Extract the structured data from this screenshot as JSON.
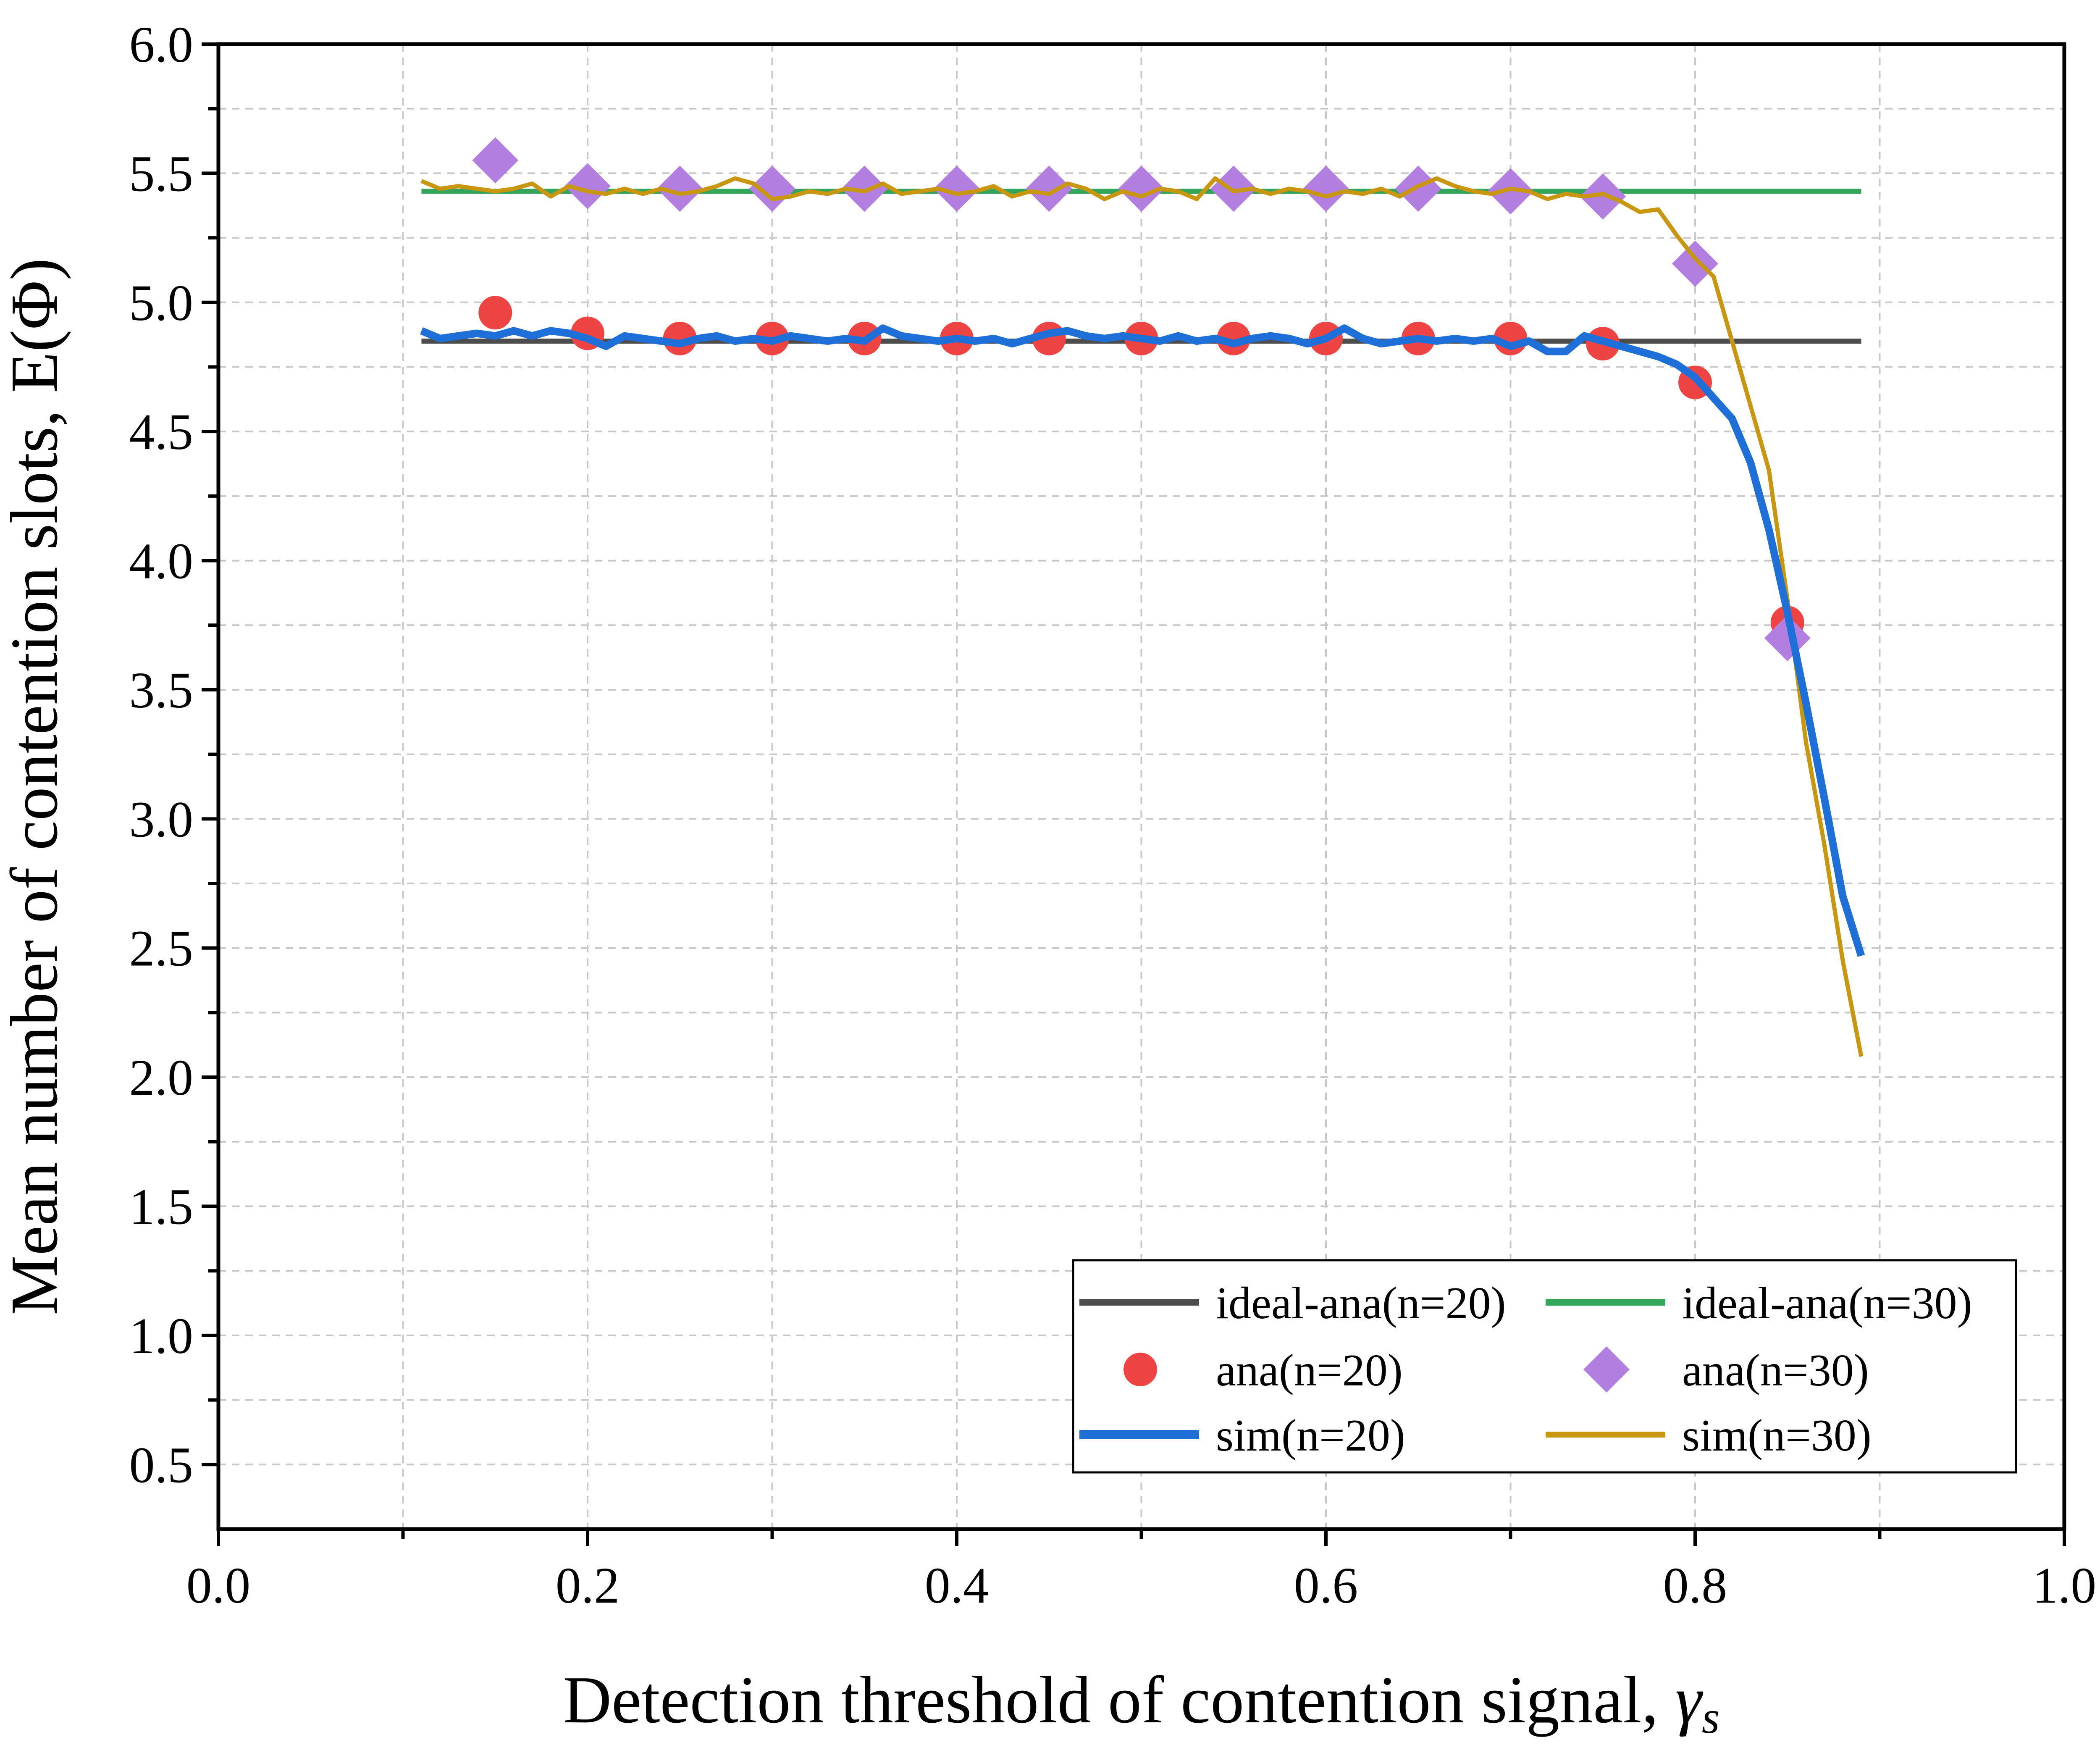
{
  "chart_data": {
    "type": "line",
    "xlabel": "Detection threshold of contention signal, ",
    "xlabel_symbol": "γ",
    "xlabel_subscript": "s",
    "ylabel": "Mean number of contention slots, E(Φ)",
    "xlim": [
      0.0,
      1.0
    ],
    "ylim": [
      0.25,
      6.0
    ],
    "x_ticks": [
      0.0,
      0.2,
      0.4,
      0.6,
      0.8,
      1.0
    ],
    "x_tick_labels": [
      "0.0",
      "0.2",
      "0.4",
      "0.6",
      "0.8",
      "1.0"
    ],
    "y_ticks": [
      0.5,
      1.0,
      1.5,
      2.0,
      2.5,
      3.0,
      3.5,
      4.0,
      4.5,
      5.0,
      5.5,
      6.0
    ],
    "y_tick_labels": [
      "0.5",
      "1.0",
      "1.5",
      "2.0",
      "2.5",
      "3.0",
      "3.5",
      "4.0",
      "4.5",
      "5.0",
      "5.5",
      "6.0"
    ],
    "grid": true,
    "legend_position": "bottom-right",
    "series": [
      {
        "name": "ideal-ana(n=20)",
        "kind": "line",
        "color": "#4d4d4d",
        "x": [
          0.11,
          0.89
        ],
        "y": [
          4.85,
          4.85
        ]
      },
      {
        "name": "ideal-ana(n=30)",
        "kind": "line",
        "color": "#33a65c",
        "x": [
          0.11,
          0.89
        ],
        "y": [
          5.43,
          5.43
        ]
      },
      {
        "name": "ana(n=20)",
        "kind": "marker-circle",
        "color": "#f04444",
        "x": [
          0.15,
          0.2,
          0.25,
          0.3,
          0.35,
          0.4,
          0.45,
          0.5,
          0.55,
          0.6,
          0.65,
          0.7,
          0.75,
          0.8,
          0.85
        ],
        "y": [
          4.96,
          4.88,
          4.86,
          4.86,
          4.86,
          4.86,
          4.86,
          4.86,
          4.86,
          4.86,
          4.86,
          4.86,
          4.84,
          4.69,
          3.76
        ]
      },
      {
        "name": "ana(n=30)",
        "kind": "marker-diamond",
        "color": "#b27fe0",
        "x": [
          0.15,
          0.2,
          0.25,
          0.3,
          0.35,
          0.4,
          0.45,
          0.5,
          0.55,
          0.6,
          0.65,
          0.7,
          0.75,
          0.8,
          0.85
        ],
        "y": [
          5.55,
          5.45,
          5.44,
          5.44,
          5.44,
          5.44,
          5.44,
          5.44,
          5.44,
          5.44,
          5.44,
          5.43,
          5.41,
          5.15,
          3.7
        ]
      },
      {
        "name": "sim(n=20)",
        "kind": "line",
        "color": "#1f6fd8",
        "x": [
          0.11,
          0.12,
          0.13,
          0.14,
          0.15,
          0.16,
          0.17,
          0.18,
          0.19,
          0.2,
          0.21,
          0.22,
          0.23,
          0.24,
          0.25,
          0.26,
          0.27,
          0.28,
          0.29,
          0.3,
          0.31,
          0.32,
          0.33,
          0.34,
          0.35,
          0.36,
          0.37,
          0.38,
          0.39,
          0.4,
          0.41,
          0.42,
          0.43,
          0.44,
          0.45,
          0.46,
          0.47,
          0.48,
          0.49,
          0.5,
          0.51,
          0.52,
          0.53,
          0.54,
          0.55,
          0.56,
          0.57,
          0.58,
          0.59,
          0.6,
          0.61,
          0.62,
          0.63,
          0.64,
          0.65,
          0.66,
          0.67,
          0.68,
          0.69,
          0.7,
          0.71,
          0.72,
          0.73,
          0.74,
          0.75,
          0.76,
          0.77,
          0.78,
          0.79,
          0.8,
          0.81,
          0.82,
          0.83,
          0.84,
          0.85,
          0.86,
          0.87,
          0.88,
          0.89
        ],
        "y": [
          4.89,
          4.86,
          4.87,
          4.88,
          4.87,
          4.89,
          4.87,
          4.89,
          4.88,
          4.86,
          4.83,
          4.87,
          4.86,
          4.85,
          4.84,
          4.86,
          4.87,
          4.85,
          4.86,
          4.85,
          4.87,
          4.86,
          4.85,
          4.86,
          4.85,
          4.9,
          4.87,
          4.86,
          4.85,
          4.86,
          4.85,
          4.86,
          4.84,
          4.86,
          4.88,
          4.89,
          4.87,
          4.86,
          4.87,
          4.86,
          4.85,
          4.87,
          4.85,
          4.86,
          4.84,
          4.86,
          4.87,
          4.86,
          4.84,
          4.86,
          4.9,
          4.86,
          4.84,
          4.85,
          4.86,
          4.85,
          4.86,
          4.85,
          4.86,
          4.83,
          4.85,
          4.81,
          4.81,
          4.87,
          4.85,
          4.83,
          4.81,
          4.79,
          4.76,
          4.71,
          4.63,
          4.55,
          4.38,
          4.12,
          3.8,
          3.45,
          3.08,
          2.7,
          2.47
        ]
      },
      {
        "name": "sim(n=30)",
        "kind": "line",
        "color": "#c8960f",
        "x": [
          0.11,
          0.12,
          0.13,
          0.14,
          0.15,
          0.16,
          0.17,
          0.18,
          0.19,
          0.2,
          0.21,
          0.22,
          0.23,
          0.24,
          0.25,
          0.26,
          0.27,
          0.28,
          0.29,
          0.3,
          0.31,
          0.32,
          0.33,
          0.34,
          0.35,
          0.36,
          0.37,
          0.38,
          0.39,
          0.4,
          0.41,
          0.42,
          0.43,
          0.44,
          0.45,
          0.46,
          0.47,
          0.48,
          0.49,
          0.5,
          0.51,
          0.52,
          0.53,
          0.54,
          0.55,
          0.56,
          0.57,
          0.58,
          0.59,
          0.6,
          0.61,
          0.62,
          0.63,
          0.64,
          0.65,
          0.66,
          0.67,
          0.68,
          0.69,
          0.7,
          0.71,
          0.72,
          0.73,
          0.74,
          0.75,
          0.76,
          0.77,
          0.78,
          0.79,
          0.8,
          0.81,
          0.82,
          0.83,
          0.84,
          0.85,
          0.86,
          0.87,
          0.88,
          0.89
        ],
        "y": [
          5.47,
          5.44,
          5.45,
          5.44,
          5.43,
          5.44,
          5.46,
          5.41,
          5.45,
          5.43,
          5.42,
          5.44,
          5.42,
          5.44,
          5.42,
          5.43,
          5.45,
          5.48,
          5.46,
          5.4,
          5.41,
          5.43,
          5.42,
          5.44,
          5.43,
          5.46,
          5.42,
          5.43,
          5.44,
          5.42,
          5.43,
          5.45,
          5.41,
          5.43,
          5.42,
          5.46,
          5.44,
          5.4,
          5.43,
          5.41,
          5.44,
          5.43,
          5.4,
          5.48,
          5.43,
          5.44,
          5.42,
          5.44,
          5.43,
          5.41,
          5.43,
          5.42,
          5.44,
          5.41,
          5.45,
          5.48,
          5.45,
          5.43,
          5.42,
          5.44,
          5.43,
          5.4,
          5.42,
          5.41,
          5.42,
          5.39,
          5.35,
          5.36,
          5.26,
          5.17,
          5.1,
          4.85,
          4.6,
          4.35,
          3.85,
          3.3,
          2.9,
          2.45,
          2.08
        ]
      }
    ]
  }
}
